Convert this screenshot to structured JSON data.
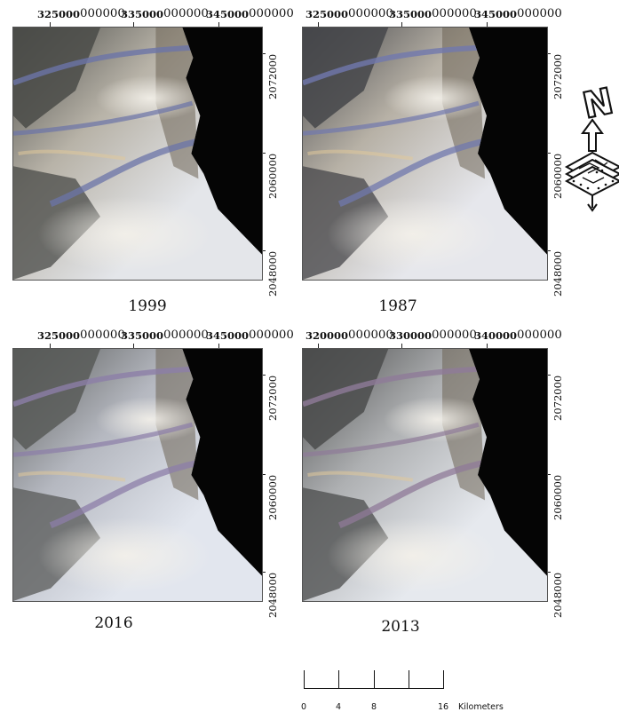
{
  "panels": [
    {
      "id": "p1999",
      "year": "1999",
      "x_ticks": [
        "325000",
        "335000",
        "345000"
      ],
      "y_ticks": [
        "2072000",
        "2060000",
        "2048000"
      ],
      "tick_suffix": "000000",
      "colors": {
        "ground": "#b8b3a8",
        "dark": "#4a4b48",
        "channel": "#6b74a8",
        "bright": "#e4e6ea"
      }
    },
    {
      "id": "p1987",
      "year": "1987",
      "x_ticks": [
        "325000",
        "335000",
        "345000"
      ],
      "y_ticks": [
        "2072000",
        "2060000",
        "2048000"
      ],
      "tick_suffix": "000000",
      "colors": {
        "ground": "#b7b1a6",
        "dark": "#45464a",
        "channel": "#7078ae",
        "bright": "#e6e7ec"
      }
    },
    {
      "id": "p2016",
      "year": "2016",
      "x_ticks": [
        "325000",
        "335000",
        "345000"
      ],
      "y_ticks": [
        "2072000",
        "2060000",
        "2048000"
      ],
      "tick_suffix": "000000",
      "colors": {
        "ground": "#b5b8c0",
        "dark": "#585a58",
        "channel": "#8c7ea8",
        "bright": "#e2e6ee"
      }
    },
    {
      "id": "p2013",
      "year": "2013",
      "x_ticks": [
        "320000",
        "330000",
        "340000"
      ],
      "y_ticks": [
        "2072000",
        "2060000",
        "2048000"
      ],
      "tick_suffix": "000000",
      "colors": {
        "ground": "#aeb0b2",
        "dark": "#4b4c4c",
        "channel": "#8f7a98",
        "bright": "#e6e9ee"
      }
    }
  ],
  "scale_bar": {
    "labels": [
      "0",
      "4",
      "8",
      "16"
    ],
    "unit": "Kilometers"
  },
  "north_arrow": {
    "letter": "N",
    "icon": "north-arrow-icon"
  }
}
